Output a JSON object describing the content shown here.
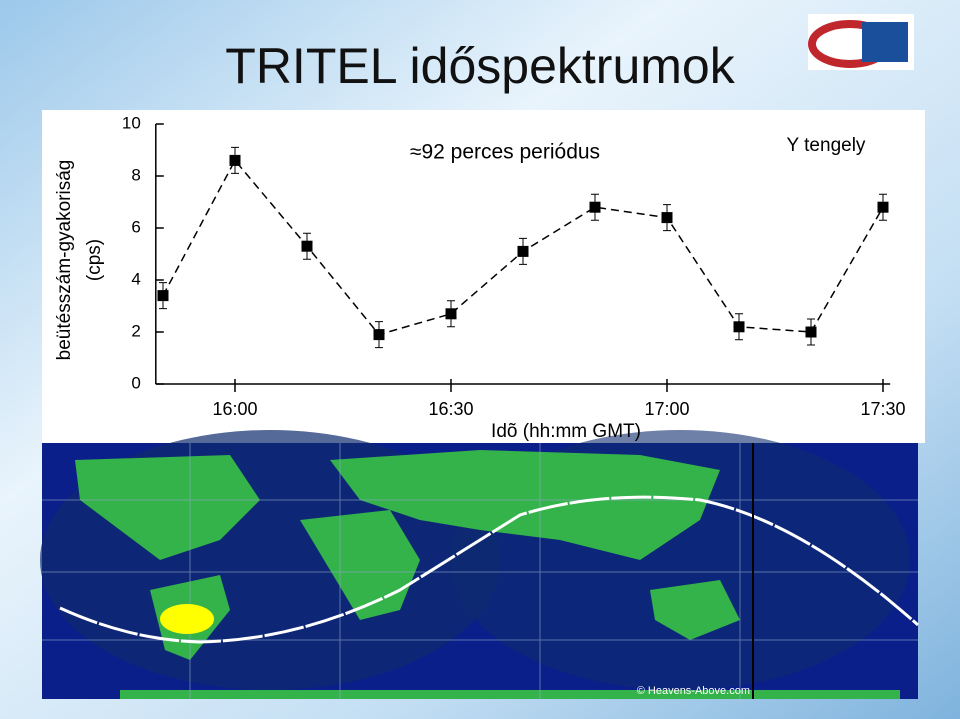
{
  "title": "TRITEL időspektrumok",
  "chart_data": {
    "type": "line",
    "y_label_1": "beütésszám-gyakoriság",
    "y_label_2": "(cps)",
    "x_label": "Idõ (hh:mm GMT)",
    "annotation": "≈92 perces periódus",
    "legend_text": "Y tengely",
    "x": [
      950,
      960,
      970,
      980,
      990,
      1000,
      1010,
      1020,
      1030,
      1040,
      1050
    ],
    "series": [
      {
        "color": "#000000",
        "values": [
          3.4,
          8.6,
          5.3,
          1.9,
          2.7,
          5.1,
          6.8,
          6.4,
          2.2,
          2.0,
          6.8
        ],
        "errors": [
          0.5,
          0.5,
          0.5,
          0.5,
          0.5,
          0.5,
          0.5,
          0.5,
          0.5,
          0.5,
          0.5
        ]
      }
    ],
    "xlim": [
      949,
      1051
    ],
    "xticks": [
      {
        "value": 960,
        "label": "16:00"
      },
      {
        "value": 990,
        "label": "16:30"
      },
      {
        "value": 1020,
        "label": "17:00"
      },
      {
        "value": 1050,
        "label": "17:30"
      }
    ],
    "ylim": [
      0,
      10
    ],
    "yticks": [
      0,
      2,
      4,
      6,
      8,
      10
    ]
  },
  "map": {
    "credit": "© Heavens-Above.com"
  }
}
